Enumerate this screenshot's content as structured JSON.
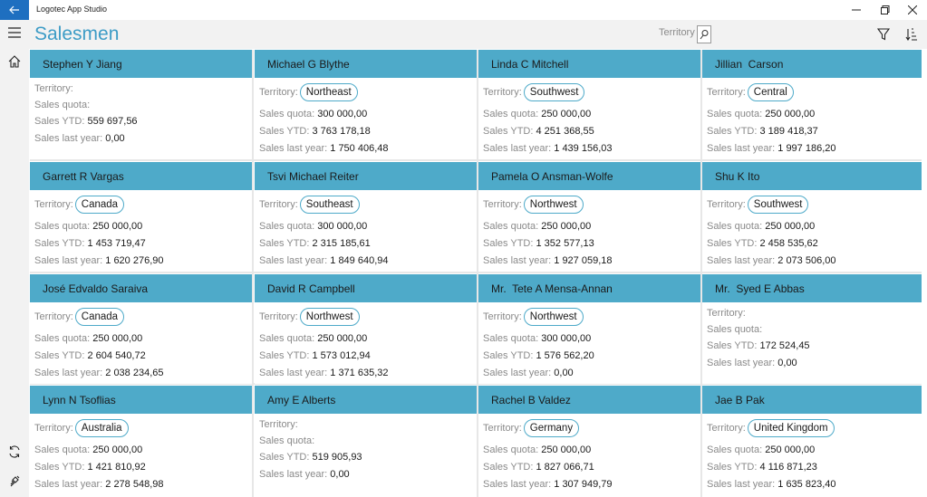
{
  "window": {
    "title": "Logotec App Studio"
  },
  "header": {
    "page_title": "Salesmen",
    "search_placeholder": "Territory"
  },
  "labels": {
    "territory": "Territory:",
    "quota": "Sales quota:",
    "ytd": "Sales YTD:",
    "last_year": "Sales last year:"
  },
  "icons": {
    "back": "arrow-left-icon",
    "minimize": "minimize-icon",
    "maximize": "maximize-icon",
    "close": "close-icon",
    "menu": "hamburger-icon",
    "home": "home-icon",
    "refresh": "refresh-icon",
    "connect": "plug-icon",
    "search": "search-icon",
    "filter": "filter-icon",
    "sort": "sort-icon"
  },
  "colors": {
    "accent": "#3d9cc6",
    "card_header": "#4eaac9",
    "back_button": "#1e6fc0"
  },
  "salesmen": [
    {
      "name": "Stephen Y Jiang",
      "territory": "",
      "quota": "",
      "ytd": "559 697,56",
      "last_year": "0,00"
    },
    {
      "name": "Michael G Blythe",
      "territory": "Northeast",
      "quota": "300 000,00",
      "ytd": "3 763 178,18",
      "last_year": "1 750 406,48"
    },
    {
      "name": "Linda C Mitchell",
      "territory": "Southwest",
      "quota": "250 000,00",
      "ytd": "4 251 368,55",
      "last_year": "1 439 156,03"
    },
    {
      "name": "Jillian  Carson",
      "territory": "Central",
      "quota": "250 000,00",
      "ytd": "3 189 418,37",
      "last_year": "1 997 186,20"
    },
    {
      "name": "Garrett R Vargas",
      "territory": "Canada",
      "quota": "250 000,00",
      "ytd": "1 453 719,47",
      "last_year": "1 620 276,90"
    },
    {
      "name": "Tsvi Michael Reiter",
      "territory": "Southeast",
      "quota": "300 000,00",
      "ytd": "2 315 185,61",
      "last_year": "1 849 640,94"
    },
    {
      "name": "Pamela O Ansman-Wolfe",
      "territory": "Northwest",
      "quota": "250 000,00",
      "ytd": "1 352 577,13",
      "last_year": "1 927 059,18"
    },
    {
      "name": "Shu K Ito",
      "territory": "Southwest",
      "quota": "250 000,00",
      "ytd": "2 458 535,62",
      "last_year": "2 073 506,00"
    },
    {
      "name": "José Edvaldo Saraiva",
      "territory": "Canada",
      "quota": "250 000,00",
      "ytd": "2 604 540,72",
      "last_year": "2 038 234,65"
    },
    {
      "name": "David R Campbell",
      "territory": "Northwest",
      "quota": "250 000,00",
      "ytd": "1 573 012,94",
      "last_year": "1 371 635,32"
    },
    {
      "name": "Mr.  Tete A Mensa-Annan",
      "territory": "Northwest",
      "quota": "300 000,00",
      "ytd": "1 576 562,20",
      "last_year": "0,00"
    },
    {
      "name": "Mr.  Syed E Abbas",
      "territory": "",
      "quota": "",
      "ytd": "172 524,45",
      "last_year": "0,00"
    },
    {
      "name": "Lynn N Tsoflias",
      "territory": "Australia",
      "quota": "250 000,00",
      "ytd": "1 421 810,92",
      "last_year": "2 278 548,98"
    },
    {
      "name": "Amy E Alberts",
      "territory": "",
      "quota": "",
      "ytd": "519 905,93",
      "last_year": "0,00"
    },
    {
      "name": "Rachel B Valdez",
      "territory": "Germany",
      "quota": "250 000,00",
      "ytd": "1 827 066,71",
      "last_year": "1 307 949,79"
    },
    {
      "name": "Jae B Pak",
      "territory": "United Kingdom",
      "quota": "250 000,00",
      "ytd": "4 116 871,23",
      "last_year": "1 635 823,40"
    }
  ]
}
